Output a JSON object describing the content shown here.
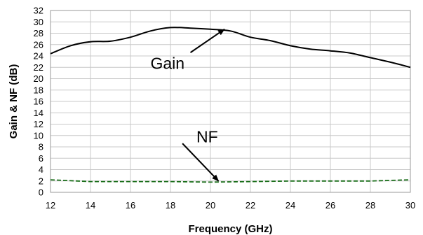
{
  "chart_data": {
    "type": "line",
    "title": "",
    "xlabel": "Frequency (GHz)",
    "ylabel": "Gain & NF (dB)",
    "xlim": [
      12,
      30
    ],
    "ylim": [
      0,
      32
    ],
    "x_ticks": [
      12,
      14,
      16,
      18,
      20,
      22,
      24,
      26,
      28,
      30
    ],
    "y_ticks": [
      0,
      2,
      4,
      6,
      8,
      10,
      12,
      14,
      16,
      18,
      20,
      22,
      24,
      26,
      28,
      30,
      32
    ],
    "grid": true,
    "legend": "none",
    "series": [
      {
        "name": "Gain",
        "color": "#000000",
        "style": "solid",
        "x": [
          12,
          13,
          14,
          15,
          16,
          17,
          18,
          19,
          20,
          21,
          22,
          23,
          24,
          25,
          26,
          27,
          28,
          29,
          30
        ],
        "y": [
          24.4,
          25.8,
          26.5,
          26.6,
          27.3,
          28.4,
          29.0,
          28.9,
          28.7,
          28.4,
          27.3,
          26.7,
          25.8,
          25.2,
          24.9,
          24.5,
          23.7,
          22.9,
          22.0
        ]
      },
      {
        "name": "NF",
        "color": "#1a6e1a",
        "style": "dashed",
        "x": [
          12,
          14,
          16,
          18,
          20,
          22,
          24,
          26,
          28,
          30
        ],
        "y": [
          2.2,
          1.9,
          1.9,
          1.9,
          1.8,
          1.9,
          2.0,
          2.0,
          2.0,
          2.2
        ]
      }
    ],
    "annotations": [
      {
        "text": "Gain",
        "label_x": 17.0,
        "label_y": 21.7,
        "arrow_from": [
          19.0,
          24.6
        ],
        "arrow_to": [
          20.7,
          28.7
        ]
      },
      {
        "text": "NF",
        "label_x": 19.3,
        "label_y": 8.8,
        "arrow_from": [
          18.6,
          8.6
        ],
        "arrow_to": [
          20.4,
          2.0
        ]
      }
    ]
  }
}
